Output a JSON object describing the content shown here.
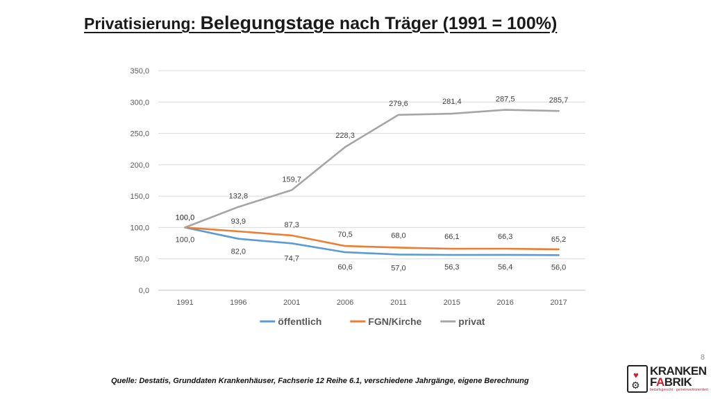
{
  "title": {
    "part1": "Privatisierung: ",
    "part2": "Belegungstage",
    "part3": " nach Träger (1991 = 100%)"
  },
  "chart_data": {
    "type": "line",
    "title": "Privatisierung: Belegungstage nach Träger (1991 = 100%)",
    "categories": [
      "1991",
      "1996",
      "2001",
      "2006",
      "2011",
      "2015",
      "2016",
      "2017"
    ],
    "ylim": [
      0,
      350
    ],
    "yticks": [
      0,
      50,
      100,
      150,
      200,
      250,
      300,
      350
    ],
    "ytick_labels": [
      "0,0",
      "50,0",
      "100,0",
      "150,0",
      "200,0",
      "250,0",
      "300,0",
      "350,0"
    ],
    "grid": true,
    "legend_position": "bottom",
    "series": [
      {
        "name": "öffentlich",
        "color": "#5b9bd5",
        "values": [
          100.0,
          82.0,
          74.7,
          60.6,
          57.0,
          56.3,
          56.4,
          56.0
        ],
        "labels": [
          "100,0",
          "82,0",
          "74,7",
          "60,6",
          "57,0",
          "56,3",
          "56,4",
          "56,0"
        ]
      },
      {
        "name": "FGN/Kirche",
        "color": "#ed7d31",
        "values": [
          100.0,
          93.9,
          87.3,
          70.5,
          68.0,
          66.1,
          66.3,
          65.2
        ],
        "labels": [
          "100,0",
          "93,9",
          "87,3",
          "70,5",
          "68,0",
          "66,1",
          "66,3",
          "65,2"
        ]
      },
      {
        "name": "privat",
        "color": "#a5a5a5",
        "values": [
          100.0,
          132.8,
          159.7,
          228.3,
          279.6,
          281.4,
          287.5,
          285.7
        ],
        "labels": [
          "100,0",
          "132,8",
          "159,7",
          "228,3",
          "279,6",
          "281,4",
          "287,5",
          "285,7"
        ]
      }
    ]
  },
  "source": "Quelle: Destatis, Grunddaten Krankenhäuser, Fachserie 12 Reihe 6.1, verschiedene Jahrgänge, eigene Berechnung",
  "page_number": "8",
  "logo": {
    "line1": "KRANKEN",
    "line2_prefix": "F",
    "line2_accent": "A",
    "line2_suffix": "BRIK",
    "tagline": "bedarfsgerecht · gemeinwohlorientiert"
  }
}
